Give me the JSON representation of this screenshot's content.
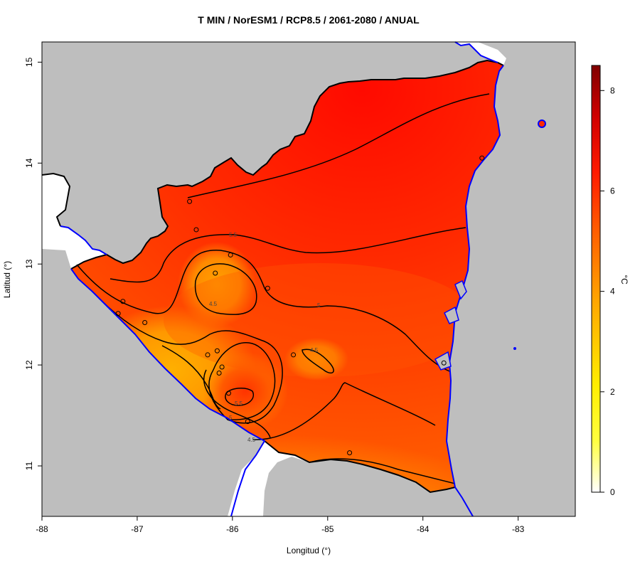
{
  "map": {
    "title": "T MIN / NorESM1 / RCP8.5 / 2061-2080 / ANUAL",
    "xlabel": "Longitud (°)",
    "ylabel": "Latitud (°)",
    "x_ticks": [
      "-88",
      "-87",
      "-86",
      "-85",
      "-84",
      "-83"
    ],
    "y_ticks": [
      "15",
      "14",
      "13",
      "12",
      "11"
    ],
    "contour_labels": [
      "5.5",
      "4.5",
      "5",
      "4.5",
      "5.5",
      "5",
      "4.5"
    ],
    "colorbar": {
      "unit": "°C",
      "ticks": [
        "8",
        "6",
        "4",
        "2",
        "0"
      ],
      "range": [
        0,
        8.5
      ],
      "colors": [
        "#ffffff",
        "#ffff00",
        "#ffa500",
        "#ff4500",
        "#e00000",
        "#8b0000"
      ]
    },
    "colors": {
      "land_background": "#bebebe",
      "coast_and_lakes": "#0000ff",
      "contour_lines": "#000000"
    }
  },
  "chart_data": {
    "type": "heatmap",
    "title": "T MIN / NorESM1 / RCP8.5 / 2061-2080 / ANUAL",
    "xlabel": "Longitud (°)",
    "ylabel": "Latitud (°)",
    "xlim": [
      -88,
      -82.4
    ],
    "ylim": [
      10.5,
      15.2
    ],
    "x_ticks": [
      -88,
      -87,
      -86,
      -85,
      -84,
      -83
    ],
    "y_ticks": [
      11,
      12,
      13,
      14,
      15
    ],
    "colorbar_ticks": [
      0,
      2,
      4,
      6,
      8
    ],
    "colorbar_range": [
      0,
      8.5
    ],
    "contour_levels": [
      4.5,
      5,
      5.5
    ],
    "stations": [
      {
        "lon": -86.45,
        "lat": 13.62
      },
      {
        "lon": -86.38,
        "lat": 13.34
      },
      {
        "lon": -86.02,
        "lat": 13.09
      },
      {
        "lon": -86.18,
        "lat": 12.91
      },
      {
        "lon": -85.63,
        "lat": 12.76
      },
      {
        "lon": -87.15,
        "lat": 12.63
      },
      {
        "lon": -87.2,
        "lat": 12.51
      },
      {
        "lon": -86.92,
        "lat": 12.42
      },
      {
        "lon": -86.26,
        "lat": 12.1
      },
      {
        "lon": -86.16,
        "lat": 12.14
      },
      {
        "lon": -86.11,
        "lat": 11.98
      },
      {
        "lon": -86.14,
        "lat": 11.92
      },
      {
        "lon": -86.04,
        "lat": 11.72
      },
      {
        "lon": -85.84,
        "lat": 11.44
      },
      {
        "lon": -85.36,
        "lat": 12.1
      },
      {
        "lon": -84.77,
        "lat": 11.13
      },
      {
        "lon": -83.78,
        "lat": 12.02
      },
      {
        "lon": -83.38,
        "lat": 14.05
      }
    ]
  }
}
